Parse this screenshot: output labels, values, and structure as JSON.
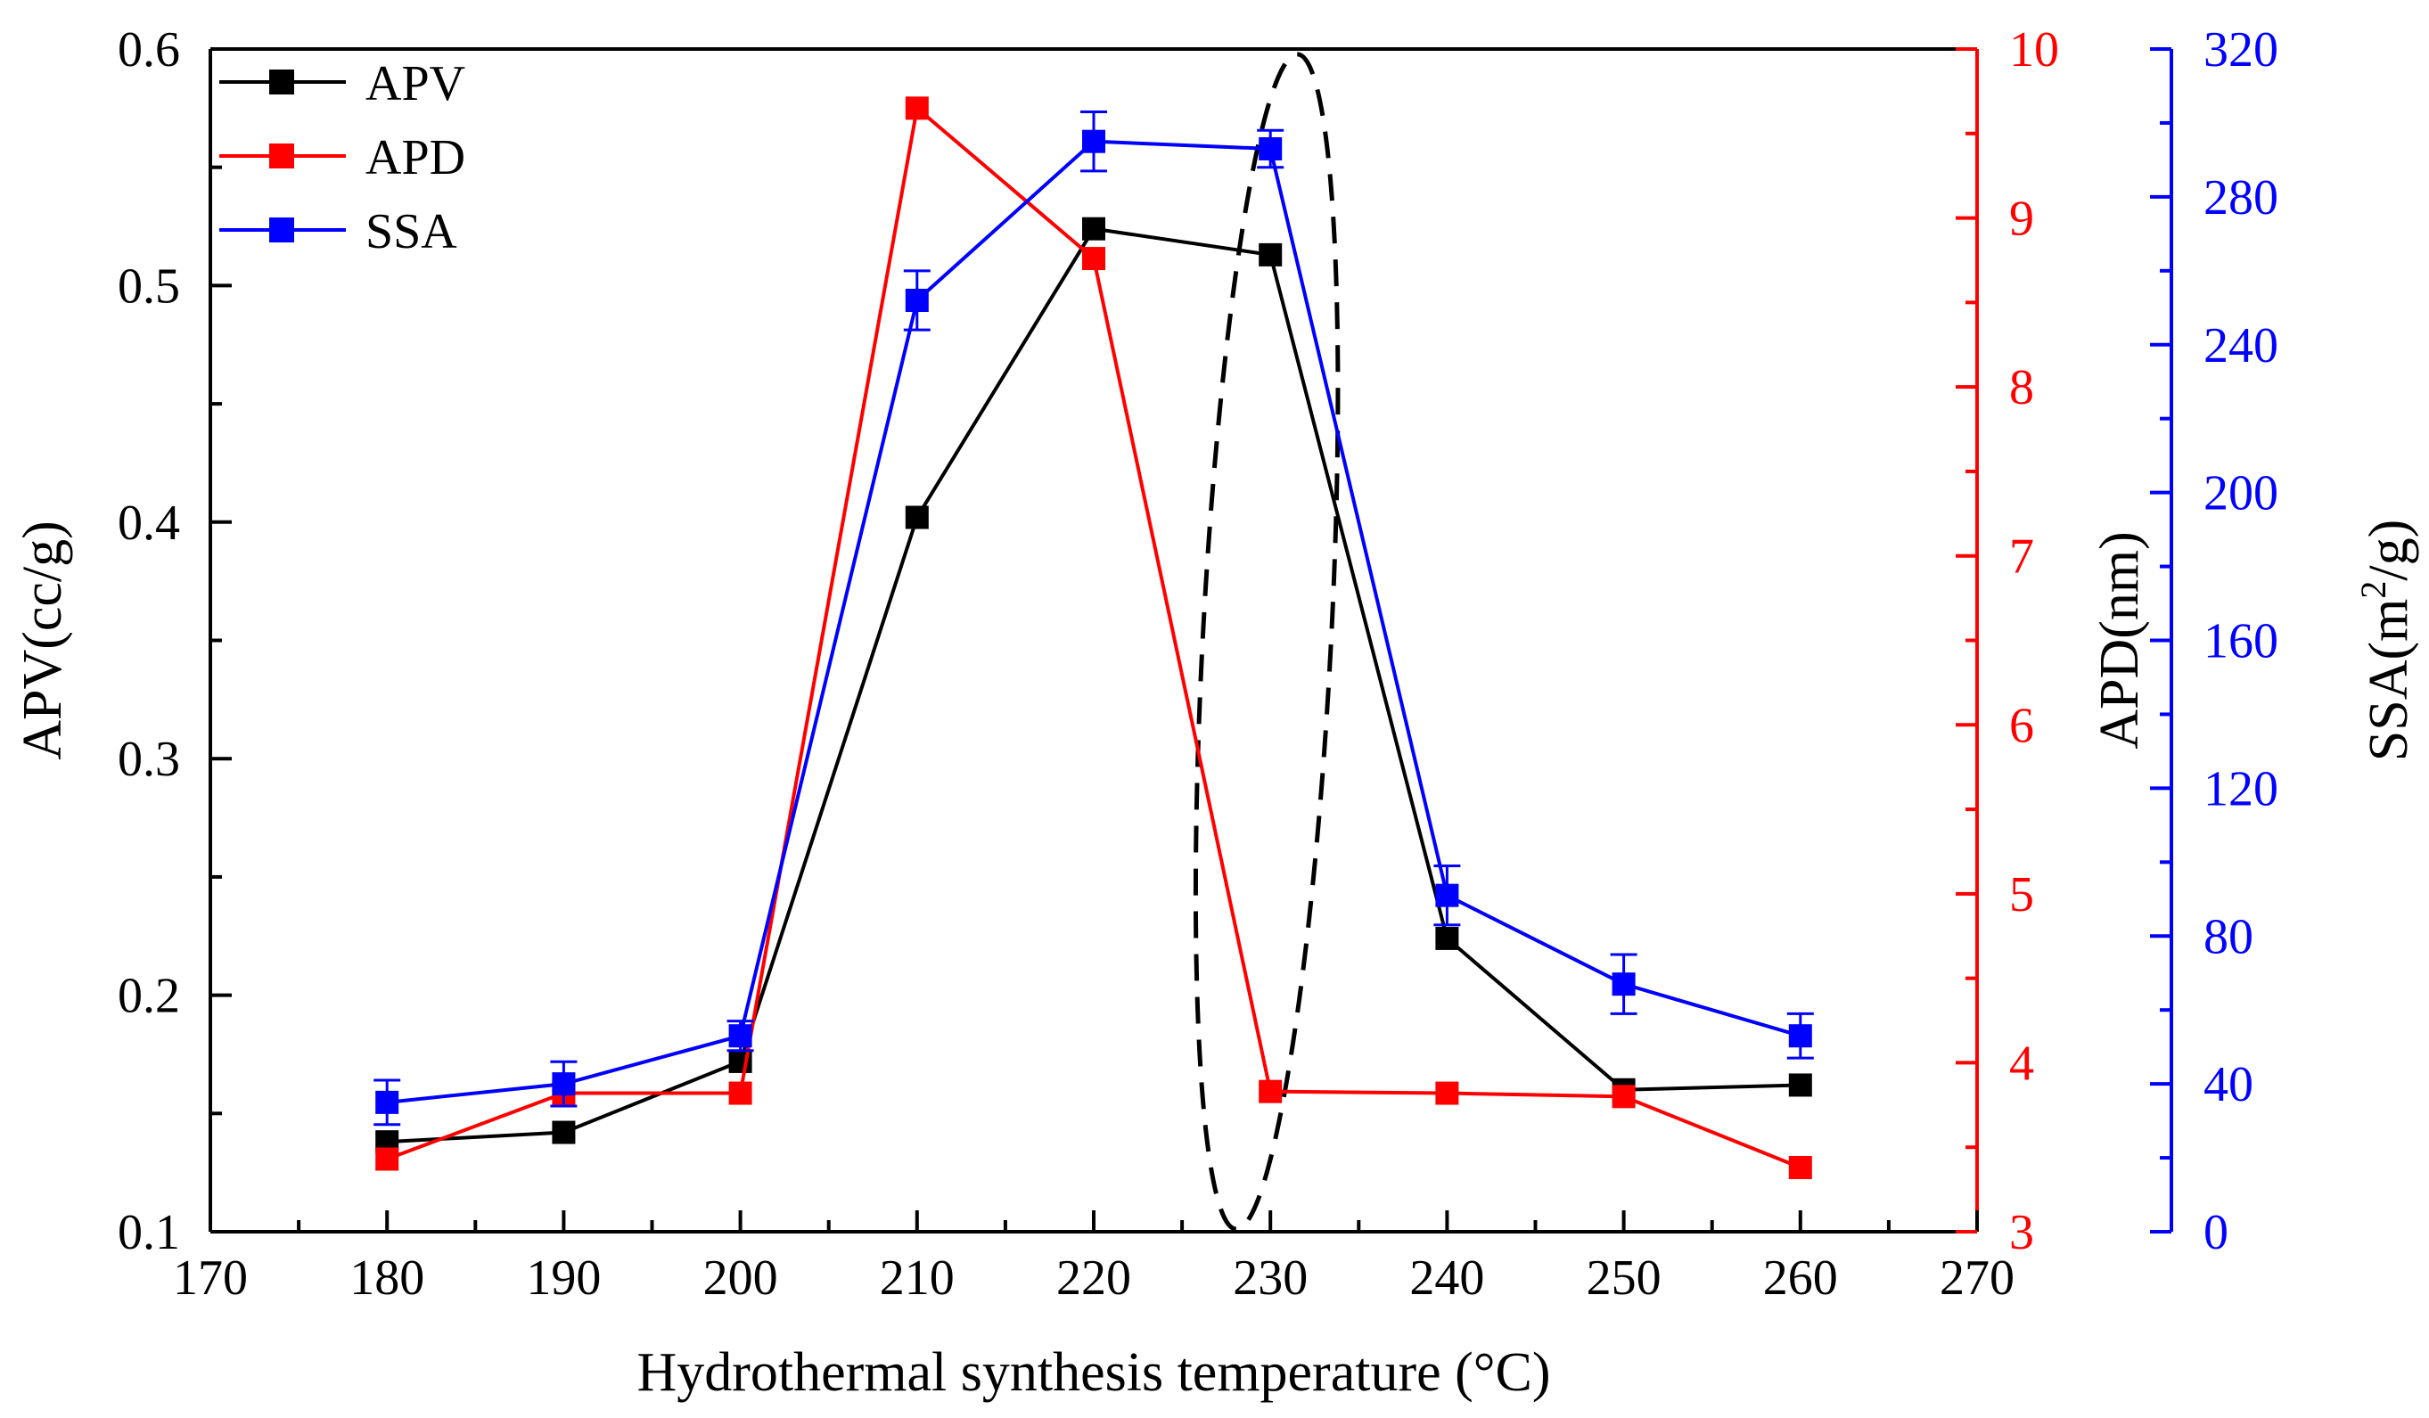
{
  "chart_data": {
    "type": "line",
    "title": "",
    "xlabel": "Hydrothermal synthesis temperature (°C)",
    "xlim": [
      170,
      270
    ],
    "xticks": [
      170,
      180,
      190,
      200,
      210,
      220,
      230,
      240,
      250,
      260,
      270
    ],
    "x": [
      180,
      190,
      200,
      210,
      220,
      230,
      240,
      250,
      260
    ],
    "axes": {
      "left": {
        "label": "APV(cc/g)",
        "ylim": [
          0.1,
          0.6
        ],
        "ticks": [
          0.1,
          0.2,
          0.3,
          0.4,
          0.5,
          0.6
        ],
        "color": "#000000",
        "decimals": 1
      },
      "right1": {
        "label": "APD(nm)",
        "ylim": [
          3,
          10
        ],
        "ticks": [
          3,
          4,
          5,
          6,
          7,
          8,
          9,
          10
        ],
        "color": "#ff0000",
        "decimals": 0
      },
      "right2": {
        "label_main": "SSA(m",
        "label_sup": "2",
        "label_tail": "/g)",
        "ylim": [
          0,
          320
        ],
        "ticks": [
          0,
          40,
          80,
          120,
          160,
          200,
          240,
          280,
          320
        ],
        "color": "#0000ff",
        "decimals": 0
      }
    },
    "series": [
      {
        "name": "APV",
        "axis": "left",
        "color": "#000000",
        "values": [
          0.138,
          0.142,
          0.172,
          0.402,
          0.524,
          0.513,
          0.224,
          0.16,
          0.162
        ]
      },
      {
        "name": "APD",
        "axis": "right1",
        "color": "#ff0000",
        "values": [
          3.43,
          3.82,
          3.82,
          9.65,
          8.76,
          3.83,
          3.82,
          3.8,
          3.38
        ]
      },
      {
        "name": "SSA",
        "axis": "right2",
        "color": "#0000ff",
        "values": [
          35,
          40,
          53,
          252,
          295,
          293,
          91,
          67,
          53
        ],
        "errors": [
          6,
          6,
          4,
          8,
          8,
          5,
          8,
          8,
          6
        ]
      }
    ],
    "legend": {
      "position": "top-left",
      "entries": [
        "APV",
        "APD",
        "SSA"
      ]
    },
    "annotations": [
      {
        "type": "dashed-ellipse",
        "around_x": 230
      }
    ],
    "grid": false
  }
}
